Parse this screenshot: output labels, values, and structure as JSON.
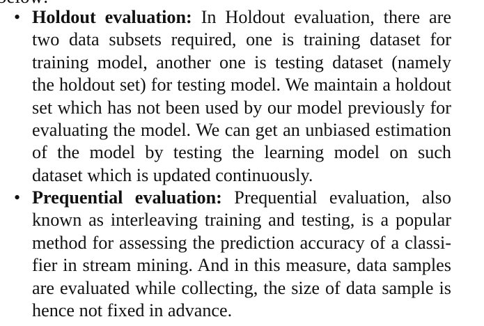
{
  "top_clip": "below:",
  "items": [
    {
      "heading": "Holdout evaluation:",
      "lines": [
        "In Holdout evaluation, there are",
        "two data subsets required, one is training dataset for",
        "training model, another one is testing dataset (namely",
        "the holdout set) for testing model. We maintain a holdout",
        "set which has not been used by our model previously for",
        "evaluating the model. We can get an unbiased estimation",
        "of the model by testing the learning model on such",
        "dataset which is updated continuously."
      ]
    },
    {
      "heading": "Prequential evaluation:",
      "lines": [
        "Prequential evaluation, also",
        "known as interleaving training and testing, is a popular",
        "method for assessing the prediction accuracy of a classi-",
        "fier in stream mining. And in this measure, data samples",
        "are evaluated while collecting, the size of data sample is",
        "hence not fixed in advance."
      ]
    }
  ]
}
